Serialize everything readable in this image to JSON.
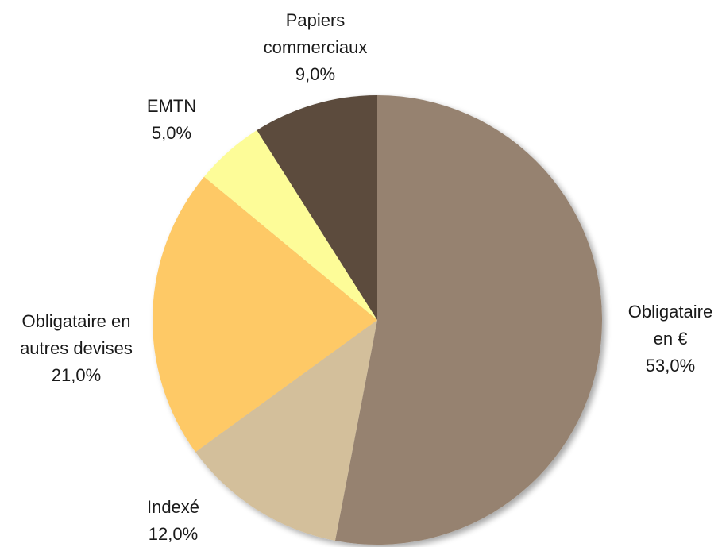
{
  "chart_data": {
    "type": "pie",
    "title": "",
    "slices": [
      {
        "name": "Obligataire en €",
        "label_lines": [
          "Obligataire",
          "en €"
        ],
        "value": 53.0,
        "value_label": "53,0%",
        "color": "#96826f"
      },
      {
        "name": "Indexé",
        "label_lines": [
          "Indexé"
        ],
        "value": 12.0,
        "value_label": "12,0%",
        "color": "#d3bf9b"
      },
      {
        "name": "Obligataire en autres devises",
        "label_lines": [
          "Obligataire en",
          "autres devises"
        ],
        "value": 21.0,
        "value_label": "21,0%",
        "color": "#fec966"
      },
      {
        "name": "EMTN",
        "label_lines": [
          "EMTN"
        ],
        "value": 5.0,
        "value_label": "5,0%",
        "color": "#fdfc98"
      },
      {
        "name": "Papiers commerciaux",
        "label_lines": [
          "Papiers",
          "commerciaux"
        ],
        "value": 9.0,
        "value_label": "9,0%",
        "color": "#5b4c3e"
      }
    ],
    "start": "12 o'clock",
    "direction": "clockwise",
    "shadow": true
  }
}
